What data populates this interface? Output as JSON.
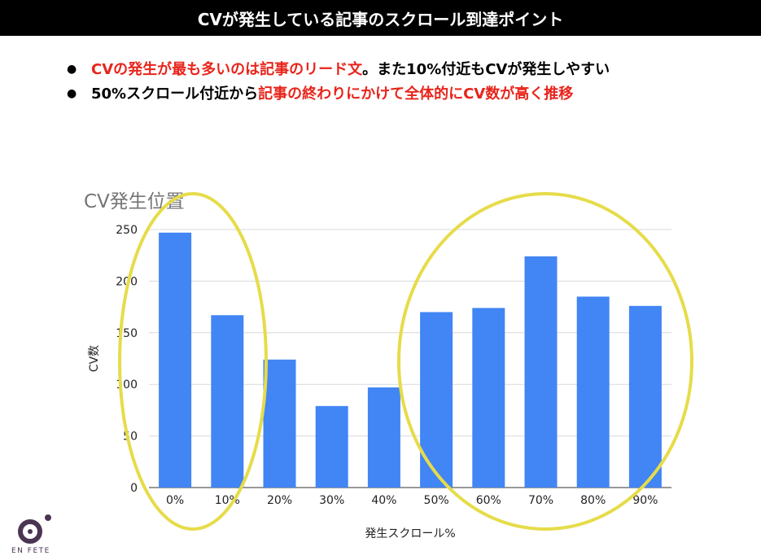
{
  "slide": {
    "title": "CVが発生している記事のスクロール到達ポイント",
    "bullets": [
      {
        "parts": [
          {
            "text": "CVの発生が最も多いのは記事のリード文",
            "highlight": true
          },
          {
            "text": "。また10%付近もCVが発生しやすい",
            "highlight": false
          }
        ]
      },
      {
        "parts": [
          {
            "text": "50%スクロール付近から",
            "highlight": false
          },
          {
            "text": "記事の終わりにかけて全体的にCV数が高く推移",
            "highlight": true
          }
        ]
      }
    ],
    "highlight_color": "#e8241b"
  },
  "chart_data": {
    "type": "bar",
    "title": "CV発生位置",
    "xlabel": "発生スクロール%",
    "ylabel": "CV数",
    "categories": [
      "0%",
      "10%",
      "20%",
      "30%",
      "40%",
      "50%",
      "60%",
      "70%",
      "80%",
      "90%"
    ],
    "values": [
      247,
      167,
      124,
      79,
      97,
      170,
      174,
      224,
      185,
      176
    ],
    "ylim": [
      0,
      250
    ],
    "yticks": [
      0,
      50,
      100,
      150,
      200,
      250
    ],
    "grid": true,
    "bar_color": "#4285f4",
    "annotation_color": "#e6dc4a"
  },
  "logo": {
    "text": "EN FETE",
    "color": "#4a3553"
  }
}
